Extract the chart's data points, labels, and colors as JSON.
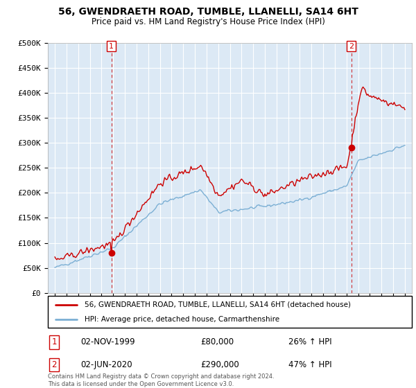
{
  "title": "56, GWENDRAETH ROAD, TUMBLE, LLANELLI, SA14 6HT",
  "subtitle": "Price paid vs. HM Land Registry's House Price Index (HPI)",
  "ylabel_ticks": [
    "£0",
    "£50K",
    "£100K",
    "£150K",
    "£200K",
    "£250K",
    "£300K",
    "£350K",
    "£400K",
    "£450K",
    "£500K"
  ],
  "yticks_vals": [
    0,
    50000,
    100000,
    150000,
    200000,
    250000,
    300000,
    350000,
    400000,
    450000,
    500000
  ],
  "ylim": [
    0,
    500000
  ],
  "red_color": "#cc0000",
  "blue_color": "#7bafd4",
  "dashed_red_color": "#cc0000",
  "sale1_year": 1999.84,
  "sale1_val": 80000,
  "sale2_year": 2020.42,
  "sale2_val": 290000,
  "annotation1": [
    "1",
    "02-NOV-1999",
    "£80,000",
    "26% ↑ HPI"
  ],
  "annotation2": [
    "2",
    "02-JUN-2020",
    "£290,000",
    "47% ↑ HPI"
  ],
  "legend_line1": "56, GWENDRAETH ROAD, TUMBLE, LLANELLI, SA14 6HT (detached house)",
  "legend_line2": "HPI: Average price, detached house, Carmarthenshire",
  "footer": "Contains HM Land Registry data © Crown copyright and database right 2024.\nThis data is licensed under the Open Government Licence v3.0.",
  "background_color": "#ffffff",
  "plot_bg_color": "#dce9f5",
  "grid_color": "#ffffff"
}
